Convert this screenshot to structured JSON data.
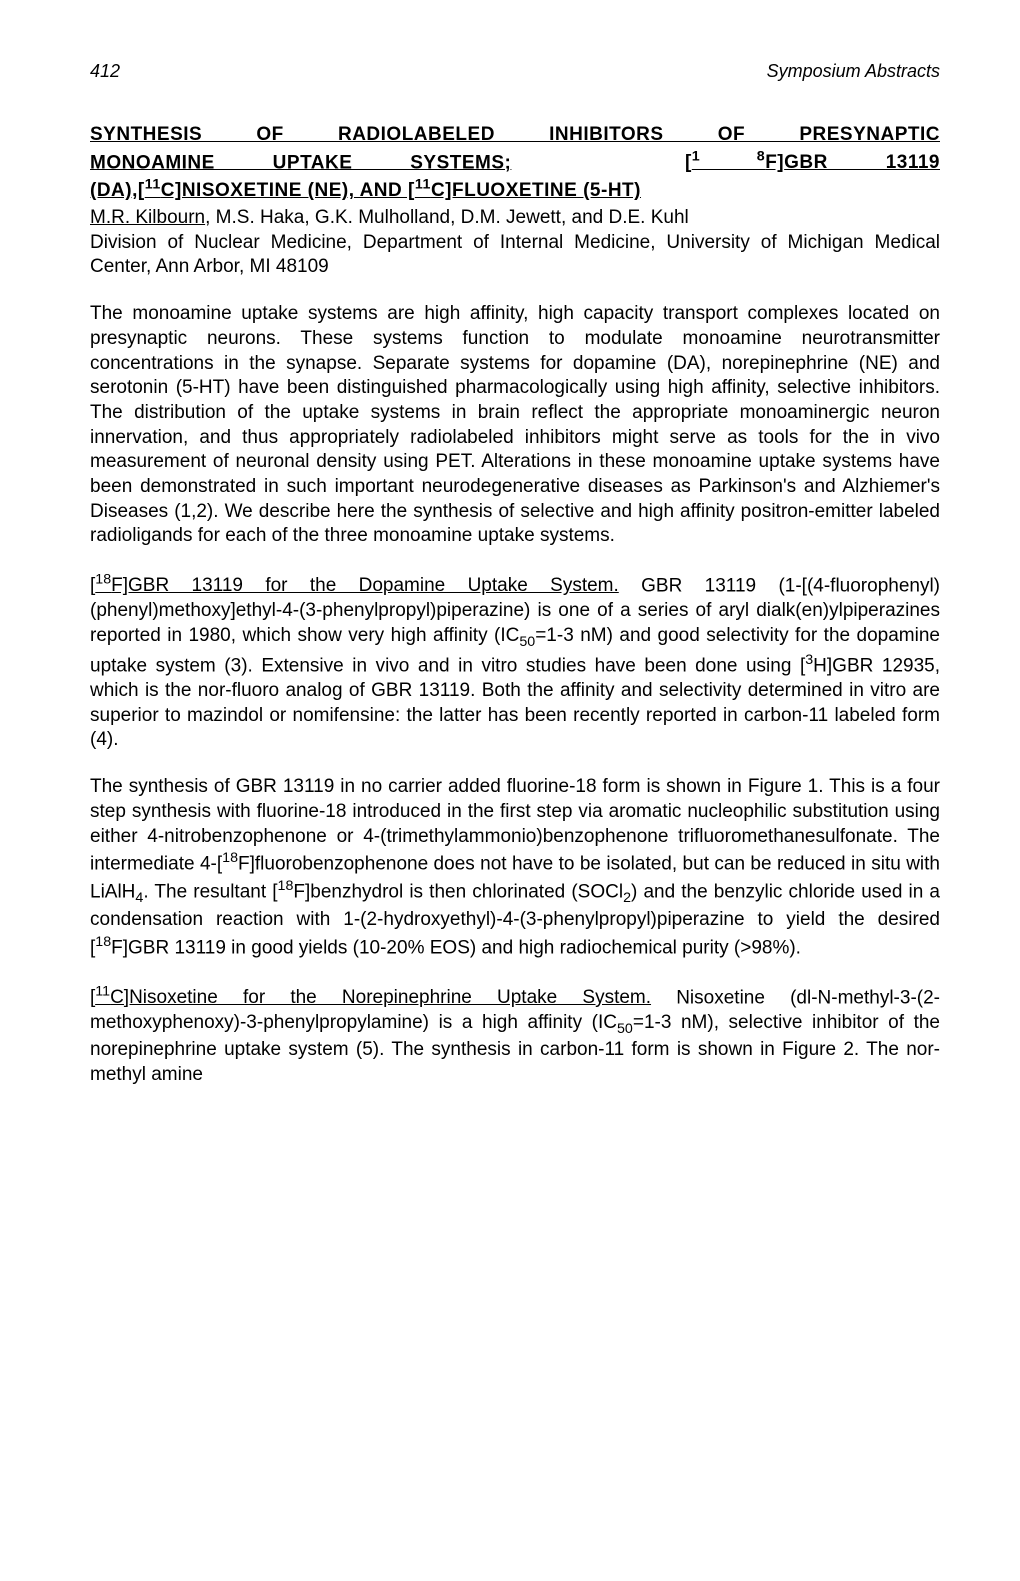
{
  "header": {
    "page_number": "412",
    "journal": "Symposium Abstracts"
  },
  "title": {
    "line1_a": "SYNTHESIS OF RADIOLABELED INHIBITORS OF PRESYNAPTIC",
    "line2_a": "MONOAMINE UPTAKE SYSTEMS;",
    "line2_b": "[",
    "line2_c": "1 8",
    "line2_d": "F]",
    "line2_e": "GBR 13119",
    "line3_a": "(DA),[",
    "line3_b": "11",
    "line3_c": "C]NISOXETINE (NE), AND [",
    "line3_d": "11",
    "line3_e": "C]FLUOXETINE (5-HT)"
  },
  "authors": {
    "lead": "M.R. Kilbourn",
    "rest": ", M.S. Haka, G.K. Mulholland, D.M. Jewett, and D.E. Kuhl"
  },
  "affiliation": "Division of Nuclear Medicine, Department of Internal Medicine, University of Michigan Medical Center, Ann Arbor, MI  48109",
  "para1": "The monoamine uptake systems are high affinity, high capacity transport complexes located on presynaptic neurons. These systems function to modulate monoamine neurotransmitter concentrations in the synapse. Separate systems for dopamine (DA), norepinephrine (NE) and serotonin (5-HT) have been distinguished pharmacologically using high affinity, selective inhibitors. The distribution of the uptake systems in brain reflect the appropriate monoaminergic neuron innervation, and thus appropriately radiolabeled inhibitors might serve as tools for the in vivo measurement of neuronal density using PET. Alterations in these monoamine uptake systems have been demonstrated in such important neurodegenerative diseases as Parkinson's  and Alzhiemer's Diseases (1,2).  We describe here the synthesis of selective and high affinity positron-emitter labeled radioligands for each of the three monoamine uptake systems.",
  "para2_head_a": "[",
  "para2_head_b": "18",
  "para2_head_c": "F]GBR 13119 for the Dopamine Uptake System.",
  "para2_body_a": "  GBR 13119 (1-[(4-fluorophenyl)(phenyl)methoxy]ethyl-4-(3-phenylpropyl)piperazine) is one of a series of aryl dialk(en)ylpiperazines reported in 1980, which show very high affinity (IC",
  "para2_body_b": "50",
  "para2_body_c": "=1-3 nM) and good selectivity for the dopamine uptake system (3). Extensive in vivo and in vitro studies have been done using [",
  "para2_body_d": "3",
  "para2_body_e": "H]GBR 12935, which is the nor-fluoro analog of GBR 13119.  Both the affinity and selectivity determined in vitro are superior to mazindol or nomifensine: the latter has been recently reported in carbon-11 labeled form (4).",
  "para3_a": "The synthesis of GBR 13119 in no carrier added fluorine-18 form is shown in Figure 1.  This is a four step synthesis with fluorine-18 introduced in the first step via aromatic nucleophilic substitution using either 4-nitrobenzophenone or 4-(trimethylammonio)benzophenone trifluoromethanesulfonate.  The intermediate 4-[",
  "para3_b": "18",
  "para3_c": "F]fluorobenzophenone does not have to be isolated, but can be reduced in situ with LiAlH",
  "para3_d": "4",
  "para3_e": ".  The resultant [",
  "para3_f": "18",
  "para3_g": "F]benzhydrol  is then chlorinated (SOCl",
  "para3_h": "2",
  "para3_i": ") and the benzylic chloride used in a condensation reaction with 1-(2-hydroxyethyl)-4-(3-phenylpropyl)piperazine to yield the desired [",
  "para3_j": "18",
  "para3_k": "F]GBR 13119 in good yields (10-20% EOS) and high radiochemical purity (>98%).",
  "para4_head_a": "[",
  "para4_head_b": "11",
  "para4_head_c": "C]Nisoxetine for the Norepinephrine Uptake System.",
  "para4_body_a": " Nisoxetine (dl-N-methyl-3-(2-methoxyphenoxy)-3-phenylpropylamine) is a high affinity (IC",
  "para4_body_b": "50",
  "para4_body_c": "=1-3 nM), selective inhibitor of the norepinephrine uptake system (5). The synthesis in carbon-11 form is shown in Figure 2. The nor-methyl amine"
}
